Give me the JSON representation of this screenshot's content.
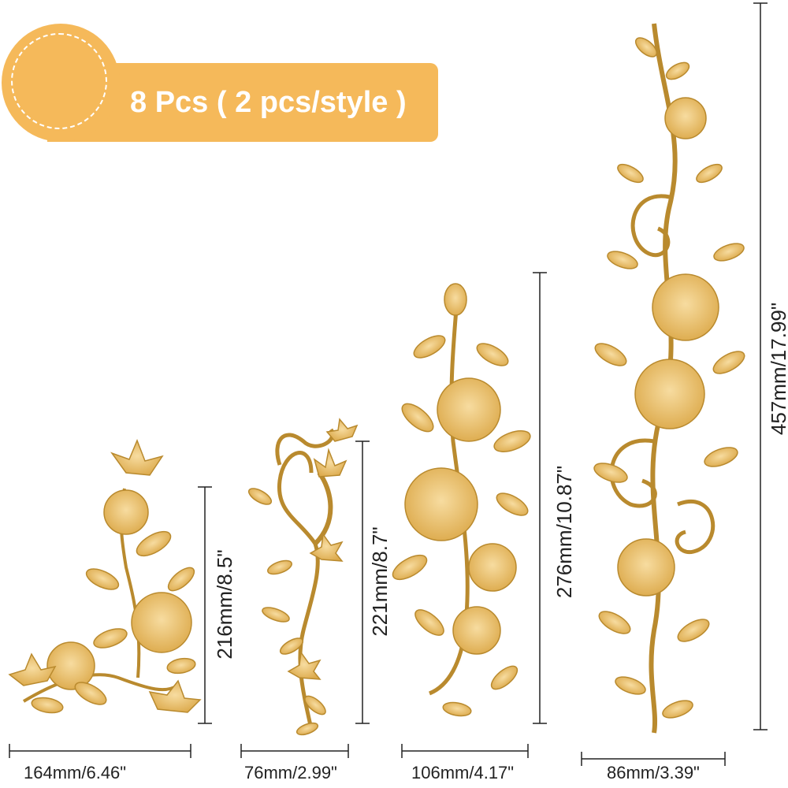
{
  "header": {
    "badge_text": "8 Pcs ( 2 pcs/style )"
  },
  "colors": {
    "badge": "#f5b95a",
    "applique_gold": "#e6b75c",
    "applique_outline": "#b98a2e",
    "dimension_line": "#222222"
  },
  "appliques": [
    {
      "width_label": "164mm/6.46\"",
      "height_label": "216mm/8.5\""
    },
    {
      "width_label": "76mm/2.99\"",
      "height_label": "221mm/8.7\""
    },
    {
      "width_label": "106mm/4.17\"",
      "height_label": "276mm/10.87\""
    },
    {
      "width_label": "86mm/3.39\"",
      "height_label": "457mm/17.99\""
    }
  ]
}
